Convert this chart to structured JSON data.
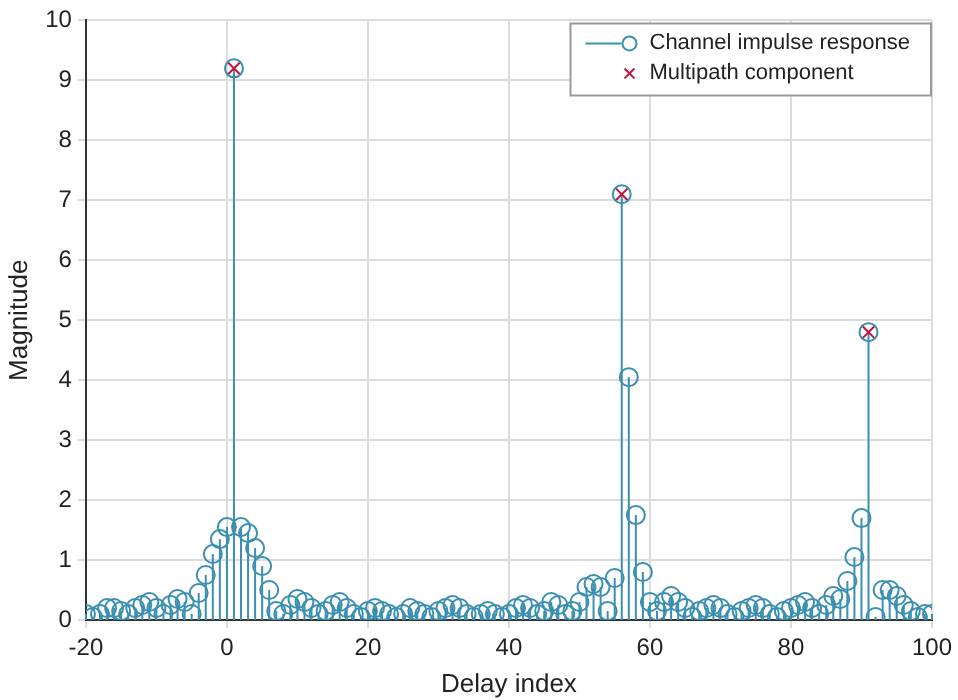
{
  "chart_data": {
    "type": "lollipop",
    "xlabel": "Delay index",
    "ylabel": "Magnitude",
    "x": [
      -20,
      -19,
      -18,
      -17,
      -16,
      -15,
      -14,
      -13,
      -12,
      -11,
      -10,
      -9,
      -8,
      -7,
      -6,
      -5,
      -4,
      -3,
      -2,
      -1,
      0,
      1,
      2,
      3,
      4,
      5,
      6,
      7,
      8,
      9,
      10,
      11,
      12,
      13,
      14,
      15,
      16,
      17,
      18,
      19,
      20,
      21,
      22,
      23,
      24,
      25,
      26,
      27,
      28,
      29,
      30,
      31,
      32,
      33,
      34,
      35,
      36,
      37,
      38,
      39,
      40,
      41,
      42,
      43,
      44,
      45,
      46,
      47,
      48,
      49,
      50,
      51,
      52,
      53,
      54,
      55,
      56,
      57,
      58,
      59,
      60,
      61,
      62,
      63,
      64,
      65,
      66,
      67,
      68,
      69,
      70,
      71,
      72,
      73,
      74,
      75,
      76,
      77,
      78,
      79,
      80,
      81,
      82,
      83,
      84,
      85,
      86,
      87,
      88,
      89,
      90,
      91,
      92,
      93,
      94,
      95,
      96,
      97,
      98,
      99,
      100
    ],
    "series": [
      {
        "name": "Channel impulse response",
        "color": "#3b8fb0",
        "marker": "circle",
        "values": [
          0.1,
          0.05,
          0.1,
          0.2,
          0.2,
          0.15,
          0.1,
          0.2,
          0.25,
          0.3,
          0.2,
          0.1,
          0.25,
          0.35,
          0.3,
          0.1,
          0.45,
          0.75,
          1.1,
          1.35,
          1.55,
          9.2,
          1.55,
          1.45,
          1.2,
          0.9,
          0.5,
          0.15,
          0.1,
          0.25,
          0.35,
          0.3,
          0.2,
          0.1,
          0.15,
          0.25,
          0.3,
          0.2,
          0.1,
          0.05,
          0.15,
          0.2,
          0.15,
          0.1,
          0.05,
          0.1,
          0.2,
          0.15,
          0.1,
          0.05,
          0.15,
          0.2,
          0.25,
          0.2,
          0.1,
          0.05,
          0.1,
          0.15,
          0.1,
          0.05,
          0.1,
          0.2,
          0.25,
          0.2,
          0.1,
          0.15,
          0.3,
          0.25,
          0.1,
          0.15,
          0.3,
          0.55,
          0.6,
          0.55,
          0.15,
          0.7,
          7.1,
          4.05,
          1.75,
          0.8,
          0.3,
          0.15,
          0.3,
          0.4,
          0.3,
          0.2,
          0.05,
          0.15,
          0.2,
          0.25,
          0.2,
          0.1,
          0.05,
          0.15,
          0.2,
          0.25,
          0.2,
          0.1,
          0.05,
          0.15,
          0.2,
          0.25,
          0.3,
          0.2,
          0.1,
          0.25,
          0.4,
          0.35,
          0.65,
          1.05,
          1.7,
          4.8,
          0.05,
          0.5,
          0.5,
          0.4,
          0.25,
          0.15,
          0.05,
          0.1,
          0.1
        ]
      },
      {
        "name": "Multipath component",
        "type": "scatter",
        "color": "#c0143c",
        "marker": "cross",
        "x": [
          1,
          56,
          91
        ],
        "values": [
          9.2,
          7.1,
          4.8
        ]
      }
    ],
    "xlim": [
      -20,
      100
    ],
    "xticks": [
      -20,
      0,
      20,
      40,
      60,
      80,
      100
    ],
    "ylim": [
      0,
      10
    ],
    "yticks": [
      0,
      1,
      2,
      3,
      4,
      5,
      6,
      7,
      8,
      9,
      10
    ],
    "grid": true,
    "legend": "top right"
  }
}
